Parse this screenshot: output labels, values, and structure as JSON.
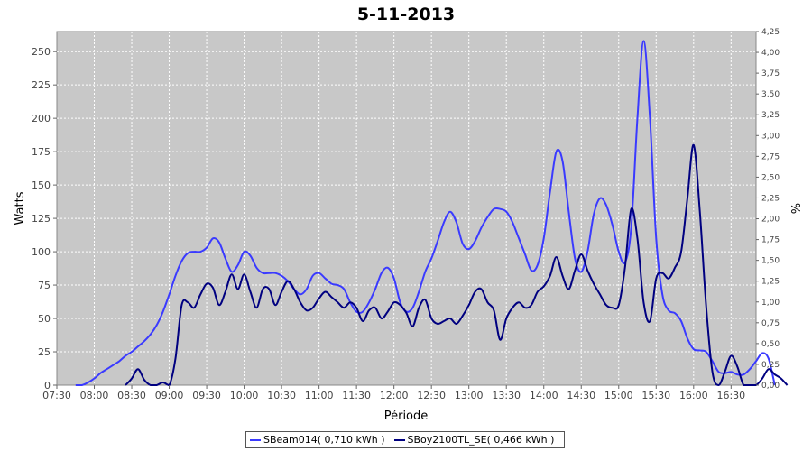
{
  "chart_data": {
    "type": "line",
    "title": "5-11-2013",
    "xlabel": "Période",
    "ylabel": "Watts",
    "ylabel_right": "%",
    "ylim": [
      0,
      265
    ],
    "ylim_right": [
      0,
      4.25
    ],
    "xlim": [
      "07:30",
      "16:50"
    ],
    "grid": true,
    "background": "#c8c8c8",
    "x_ticks": [
      "07:30",
      "08:00",
      "08:30",
      "09:00",
      "09:30",
      "10:00",
      "10:30",
      "11:00",
      "11:30",
      "12:00",
      "12:30",
      "13:00",
      "13:30",
      "14:00",
      "14:30",
      "15:00",
      "15:30",
      "16:00",
      "16:30"
    ],
    "y_ticks": [
      "0",
      "25",
      "50",
      "75",
      "100",
      "125",
      "150",
      "175",
      "200",
      "225",
      "250"
    ],
    "y_ticks_right": [
      "0,00",
      "0,25",
      "0,50",
      "0,75",
      "1,00",
      "1,25",
      "1,50",
      "1,75",
      "2,00",
      "2,25",
      "2,50",
      "2,75",
      "3,00",
      "3,25",
      "3,50",
      "3,75",
      "4,00",
      "4,25"
    ],
    "legend_position": "bottom",
    "series": [
      {
        "name": "SBeam014( 0,710 kWh  )",
        "color": "#3a3aff",
        "points": [
          [
            "07:45",
            0
          ],
          [
            "07:50",
            0
          ],
          [
            "07:55",
            2
          ],
          [
            "08:00",
            5
          ],
          [
            "08:05",
            9
          ],
          [
            "08:10",
            12
          ],
          [
            "08:15",
            15
          ],
          [
            "08:20",
            18
          ],
          [
            "08:25",
            22
          ],
          [
            "08:30",
            25
          ],
          [
            "08:35",
            29
          ],
          [
            "08:40",
            33
          ],
          [
            "08:45",
            38
          ],
          [
            "08:50",
            45
          ],
          [
            "08:55",
            55
          ],
          [
            "09:00",
            68
          ],
          [
            "09:05",
            82
          ],
          [
            "09:10",
            93
          ],
          [
            "09:15",
            99
          ],
          [
            "09:20",
            100
          ],
          [
            "09:25",
            100
          ],
          [
            "09:30",
            103
          ],
          [
            "09:35",
            110
          ],
          [
            "09:40",
            107
          ],
          [
            "09:45",
            95
          ],
          [
            "09:50",
            85
          ],
          [
            "09:55",
            90
          ],
          [
            "10:00",
            100
          ],
          [
            "10:05",
            97
          ],
          [
            "10:10",
            88
          ],
          [
            "10:15",
            84
          ],
          [
            "10:20",
            84
          ],
          [
            "10:25",
            84
          ],
          [
            "10:30",
            82
          ],
          [
            "10:35",
            78
          ],
          [
            "10:40",
            72
          ],
          [
            "10:45",
            68
          ],
          [
            "10:50",
            72
          ],
          [
            "10:55",
            82
          ],
          [
            "11:00",
            84
          ],
          [
            "11:05",
            80
          ],
          [
            "11:10",
            76
          ],
          [
            "11:15",
            75
          ],
          [
            "11:20",
            72
          ],
          [
            "11:25",
            62
          ],
          [
            "11:30",
            55
          ],
          [
            "11:35",
            55
          ],
          [
            "11:40",
            62
          ],
          [
            "11:45",
            72
          ],
          [
            "11:50",
            84
          ],
          [
            "11:55",
            88
          ],
          [
            "12:00",
            80
          ],
          [
            "12:05",
            62
          ],
          [
            "12:10",
            55
          ],
          [
            "12:15",
            58
          ],
          [
            "12:20",
            70
          ],
          [
            "12:25",
            85
          ],
          [
            "12:30",
            95
          ],
          [
            "12:35",
            108
          ],
          [
            "12:40",
            122
          ],
          [
            "12:45",
            130
          ],
          [
            "12:50",
            122
          ],
          [
            "12:55",
            106
          ],
          [
            "13:00",
            102
          ],
          [
            "13:05",
            108
          ],
          [
            "13:10",
            118
          ],
          [
            "13:15",
            126
          ],
          [
            "13:20",
            132
          ],
          [
            "13:25",
            132
          ],
          [
            "13:30",
            130
          ],
          [
            "13:35",
            122
          ],
          [
            "13:40",
            110
          ],
          [
            "13:45",
            98
          ],
          [
            "13:50",
            86
          ],
          [
            "13:55",
            90
          ],
          [
            "14:00",
            110
          ],
          [
            "14:05",
            145
          ],
          [
            "14:10",
            175
          ],
          [
            "14:15",
            168
          ],
          [
            "14:20",
            130
          ],
          [
            "14:25",
            95
          ],
          [
            "14:30",
            85
          ],
          [
            "14:35",
            100
          ],
          [
            "14:40",
            128
          ],
          [
            "14:45",
            140
          ],
          [
            "14:50",
            135
          ],
          [
            "14:55",
            120
          ],
          [
            "15:00",
            100
          ],
          [
            "15:05",
            92
          ],
          [
            "15:10",
            118
          ],
          [
            "15:15",
            200
          ],
          [
            "15:20",
            258
          ],
          [
            "15:25",
            200
          ],
          [
            "15:30",
            110
          ],
          [
            "15:35",
            68
          ],
          [
            "15:40",
            56
          ],
          [
            "15:45",
            54
          ],
          [
            "15:50",
            48
          ],
          [
            "15:55",
            35
          ],
          [
            "16:00",
            27
          ],
          [
            "16:05",
            26
          ],
          [
            "16:10",
            25
          ],
          [
            "16:15",
            18
          ],
          [
            "16:20",
            10
          ],
          [
            "16:25",
            9
          ],
          [
            "16:30",
            10
          ],
          [
            "16:35",
            8
          ],
          [
            "16:40",
            8
          ],
          [
            "16:45",
            12
          ],
          [
            "16:50",
            18
          ],
          [
            "16:55",
            24
          ],
          [
            "17:00",
            20
          ],
          [
            "17:05",
            0
          ]
        ]
      },
      {
        "name": "SBoy2100TL_SE( 0,466 kWh  )",
        "color": "#000080",
        "points": [
          [
            "08:25",
            0
          ],
          [
            "08:30",
            5
          ],
          [
            "08:35",
            12
          ],
          [
            "08:40",
            4
          ],
          [
            "08:45",
            0
          ],
          [
            "08:50",
            0
          ],
          [
            "08:55",
            2
          ],
          [
            "09:00",
            0
          ],
          [
            "09:05",
            20
          ],
          [
            "09:10",
            60
          ],
          [
            "09:15",
            62
          ],
          [
            "09:20",
            58
          ],
          [
            "09:25",
            68
          ],
          [
            "09:30",
            76
          ],
          [
            "09:35",
            73
          ],
          [
            "09:40",
            60
          ],
          [
            "09:45",
            70
          ],
          [
            "09:50",
            83
          ],
          [
            "09:55",
            72
          ],
          [
            "10:00",
            83
          ],
          [
            "10:05",
            70
          ],
          [
            "10:10",
            58
          ],
          [
            "10:15",
            72
          ],
          [
            "10:20",
            72
          ],
          [
            "10:25",
            60
          ],
          [
            "10:30",
            70
          ],
          [
            "10:35",
            78
          ],
          [
            "10:40",
            72
          ],
          [
            "10:45",
            62
          ],
          [
            "10:50",
            56
          ],
          [
            "10:55",
            58
          ],
          [
            "11:00",
            65
          ],
          [
            "11:05",
            70
          ],
          [
            "11:10",
            66
          ],
          [
            "11:15",
            62
          ],
          [
            "11:20",
            58
          ],
          [
            "11:25",
            62
          ],
          [
            "11:30",
            58
          ],
          [
            "11:35",
            48
          ],
          [
            "11:40",
            56
          ],
          [
            "11:45",
            58
          ],
          [
            "11:50",
            50
          ],
          [
            "11:55",
            55
          ],
          [
            "12:00",
            62
          ],
          [
            "12:05",
            60
          ],
          [
            "12:10",
            54
          ],
          [
            "12:15",
            44
          ],
          [
            "12:20",
            58
          ],
          [
            "12:25",
            64
          ],
          [
            "12:30",
            50
          ],
          [
            "12:35",
            46
          ],
          [
            "12:40",
            48
          ],
          [
            "12:45",
            50
          ],
          [
            "12:50",
            46
          ],
          [
            "12:55",
            52
          ],
          [
            "13:00",
            60
          ],
          [
            "13:05",
            70
          ],
          [
            "13:10",
            72
          ],
          [
            "13:15",
            62
          ],
          [
            "13:20",
            56
          ],
          [
            "13:25",
            34
          ],
          [
            "13:30",
            50
          ],
          [
            "13:35",
            58
          ],
          [
            "13:40",
            62
          ],
          [
            "13:45",
            58
          ],
          [
            "13:50",
            60
          ],
          [
            "13:55",
            70
          ],
          [
            "14:00",
            74
          ],
          [
            "14:05",
            82
          ],
          [
            "14:10",
            96
          ],
          [
            "14:15",
            82
          ],
          [
            "14:20",
            72
          ],
          [
            "14:25",
            86
          ],
          [
            "14:30",
            98
          ],
          [
            "14:35",
            86
          ],
          [
            "14:40",
            76
          ],
          [
            "14:45",
            68
          ],
          [
            "14:50",
            60
          ],
          [
            "14:55",
            58
          ],
          [
            "15:00",
            60
          ],
          [
            "15:05",
            88
          ],
          [
            "15:10",
            132
          ],
          [
            "15:15",
            110
          ],
          [
            "15:20",
            62
          ],
          [
            "15:25",
            48
          ],
          [
            "15:30",
            80
          ],
          [
            "15:35",
            84
          ],
          [
            "15:40",
            80
          ],
          [
            "15:45",
            88
          ],
          [
            "15:50",
            100
          ],
          [
            "15:55",
            140
          ],
          [
            "16:00",
            180
          ],
          [
            "16:05",
            130
          ],
          [
            "16:10",
            60
          ],
          [
            "16:15",
            10
          ],
          [
            "16:20",
            0
          ],
          [
            "16:25",
            10
          ],
          [
            "16:30",
            22
          ],
          [
            "16:35",
            14
          ],
          [
            "16:40",
            0
          ],
          [
            "16:45",
            0
          ],
          [
            "16:50",
            0
          ],
          [
            "16:55",
            5
          ],
          [
            "17:00",
            12
          ],
          [
            "17:05",
            8
          ],
          [
            "17:10",
            5
          ],
          [
            "17:15",
            0
          ]
        ]
      }
    ]
  }
}
